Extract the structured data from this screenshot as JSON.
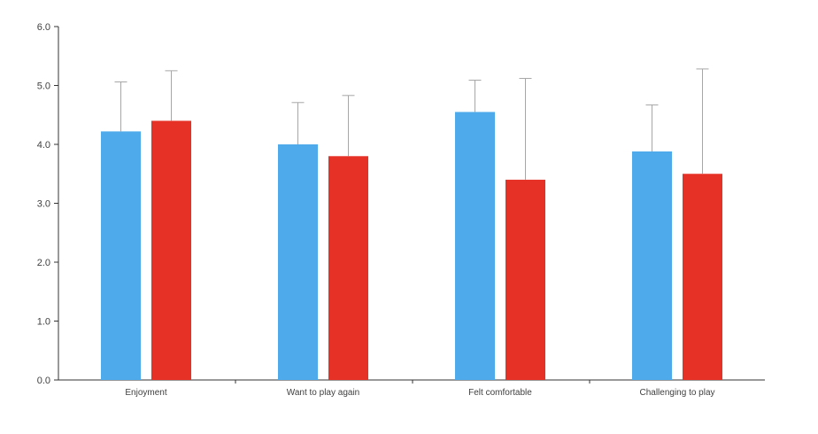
{
  "chart_data": {
    "type": "bar",
    "title": "",
    "xlabel": "",
    "ylabel": "",
    "categories": [
      "Enjoyment",
      "Want to play again",
      "Felt comfortable",
      "Challenging to play"
    ],
    "series": [
      {
        "color": "#4eaaea",
        "values": [
          4.22,
          4.0,
          4.55,
          3.88
        ],
        "error_upper": [
          5.06,
          4.71,
          5.09,
          4.67
        ]
      },
      {
        "color": "#e63126",
        "values": [
          4.4,
          3.8,
          3.4,
          3.5
        ],
        "error_upper": [
          5.25,
          4.83,
          5.12,
          5.28
        ]
      }
    ],
    "ylim": [
      0,
      6
    ],
    "yticks": [
      "0.0",
      "1.0",
      "2.0",
      "3.0",
      "4.0",
      "5.0",
      "6.0"
    ],
    "grid": false,
    "legend": "none"
  }
}
